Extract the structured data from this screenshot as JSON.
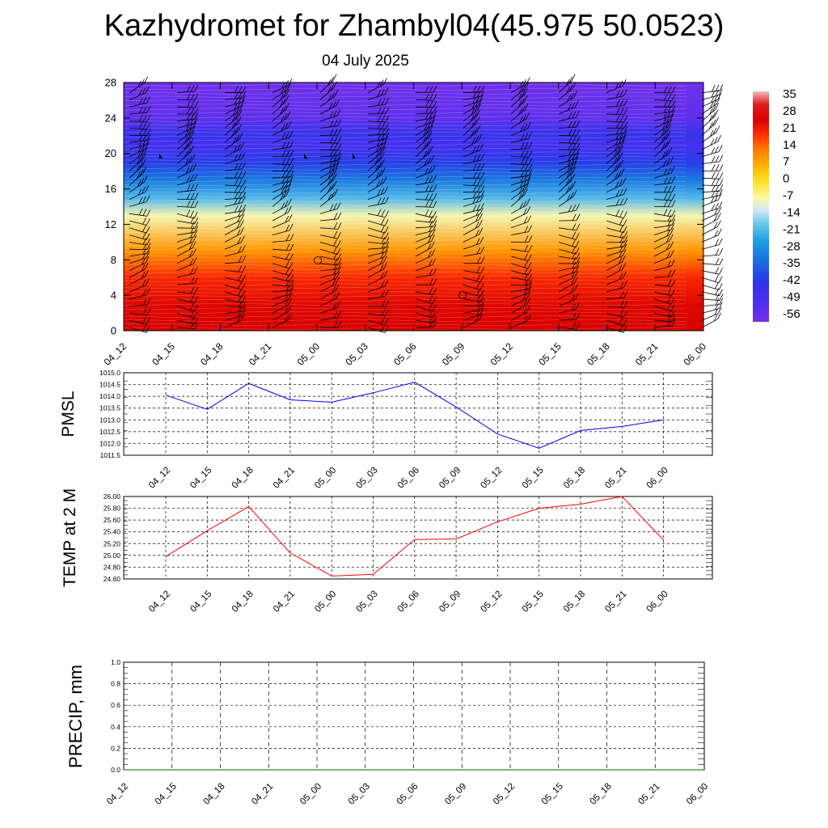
{
  "header": {
    "title": "Kazhydromet for Zhambyl04(45.975 50.0523)",
    "subtitle": "04 July 2025"
  },
  "chart_data": [
    {
      "type": "heatmap",
      "title": "",
      "xlabel": "",
      "ylabel": "",
      "x": [
        "04_12",
        "04_15",
        "04_18",
        "04_21",
        "05_00",
        "05_03",
        "05_06",
        "05_09",
        "05_12",
        "05_15",
        "05_18",
        "05_21",
        "06_00"
      ],
      "y_ticks": [
        0,
        4,
        8,
        12,
        16,
        20,
        24,
        28
      ],
      "ylim": [
        0,
        28
      ],
      "colorbar": {
        "labels": [
          35,
          28,
          21,
          14,
          7,
          0,
          -7,
          -14,
          -21,
          -28,
          -35,
          -42,
          -49,
          -56
        ],
        "stops": [
          {
            "value": 35,
            "color": "#f3bcbc"
          },
          {
            "value": 30,
            "color": "#e02020"
          },
          {
            "value": 24,
            "color": "#d80000"
          },
          {
            "value": 18,
            "color": "#ff3000"
          },
          {
            "value": 12,
            "color": "#ff7a00"
          },
          {
            "value": 6,
            "color": "#ffb000"
          },
          {
            "value": 0,
            "color": "#ffdd20"
          },
          {
            "value": -7,
            "color": "#fff8a0"
          },
          {
            "value": -12,
            "color": "#cfe8f6"
          },
          {
            "value": -17,
            "color": "#72c8ee"
          },
          {
            "value": -24,
            "color": "#1e9fe4"
          },
          {
            "value": -32,
            "color": "#1a6ee0"
          },
          {
            "value": -40,
            "color": "#2a36e8"
          },
          {
            "value": -48,
            "color": "#4a2ef0"
          },
          {
            "value": -56,
            "color": "#7530e8"
          }
        ]
      },
      "profile": [
        {
          "height": 0,
          "temp": 24
        },
        {
          "height": 3,
          "temp": 23
        },
        {
          "height": 6,
          "temp": 19
        },
        {
          "height": 9,
          "temp": 9
        },
        {
          "height": 13,
          "temp": -8
        },
        {
          "height": 15,
          "temp": -20
        },
        {
          "height": 17,
          "temp": -30
        },
        {
          "height": 19,
          "temp": -39
        },
        {
          "height": 21,
          "temp": -47
        },
        {
          "height": 22,
          "temp": -43
        },
        {
          "height": 24,
          "temp": -52
        },
        {
          "height": 28,
          "temp": -55
        }
      ],
      "wind_barbs": "black wind barbs at each time and level"
    },
    {
      "type": "line",
      "ylabel": "PMSL",
      "color": "#0000ff",
      "categories": [
        "04_12",
        "04_15",
        "04_18",
        "04_21",
        "05_00",
        "05_03",
        "05_06",
        "05_09",
        "05_12",
        "05_15",
        "05_18",
        "05_21",
        "06_00"
      ],
      "values": [
        1014.05,
        1013.45,
        1014.55,
        1013.85,
        1013.75,
        1014.15,
        1014.6,
        1013.55,
        1012.4,
        1011.8,
        1012.55,
        1012.72,
        1013.0
      ],
      "ylim": [
        1011.5,
        1015.0
      ],
      "y_ticks": [
        "1011.5",
        "1012.0",
        "1012.5",
        "1013.0",
        "1013.5",
        "1014.0",
        "1014.5",
        "1015.0"
      ],
      "grid": true
    },
    {
      "type": "line",
      "ylabel": "TEMP at 2 M",
      "color": "#ff0000",
      "categories": [
        "04_12",
        "04_15",
        "04_18",
        "04_21",
        "05_00",
        "05_03",
        "05_06",
        "05_09",
        "05_12",
        "05_15",
        "05_18",
        "05_21",
        "06_00"
      ],
      "values": [
        24.98,
        25.42,
        25.83,
        25.04,
        24.65,
        24.68,
        25.27,
        25.28,
        25.57,
        25.8,
        25.87,
        26.0,
        25.26
      ],
      "ylim": [
        24.6,
        26.0
      ],
      "y_ticks": [
        "24.60",
        "24.80",
        "25.00",
        "25.20",
        "25.40",
        "25.60",
        "25.80",
        "26.00"
      ],
      "grid": true
    },
    {
      "type": "line",
      "ylabel": "PRECIP, mm",
      "color": "#006400",
      "categories": [
        "04_12",
        "04_15",
        "04_18",
        "04_21",
        "05_00",
        "05_03",
        "05_06",
        "05_09",
        "05_12",
        "05_15",
        "05_18",
        "05_21",
        "06_00"
      ],
      "values": [
        0,
        0,
        0,
        0,
        0,
        0,
        0,
        0,
        0,
        0,
        0,
        0,
        0
      ],
      "ylim": [
        0.0,
        1.0
      ],
      "y_ticks": [
        "0.0",
        "0.2",
        "0.4",
        "0.6",
        "0.8",
        "1.0"
      ],
      "grid": true
    }
  ]
}
